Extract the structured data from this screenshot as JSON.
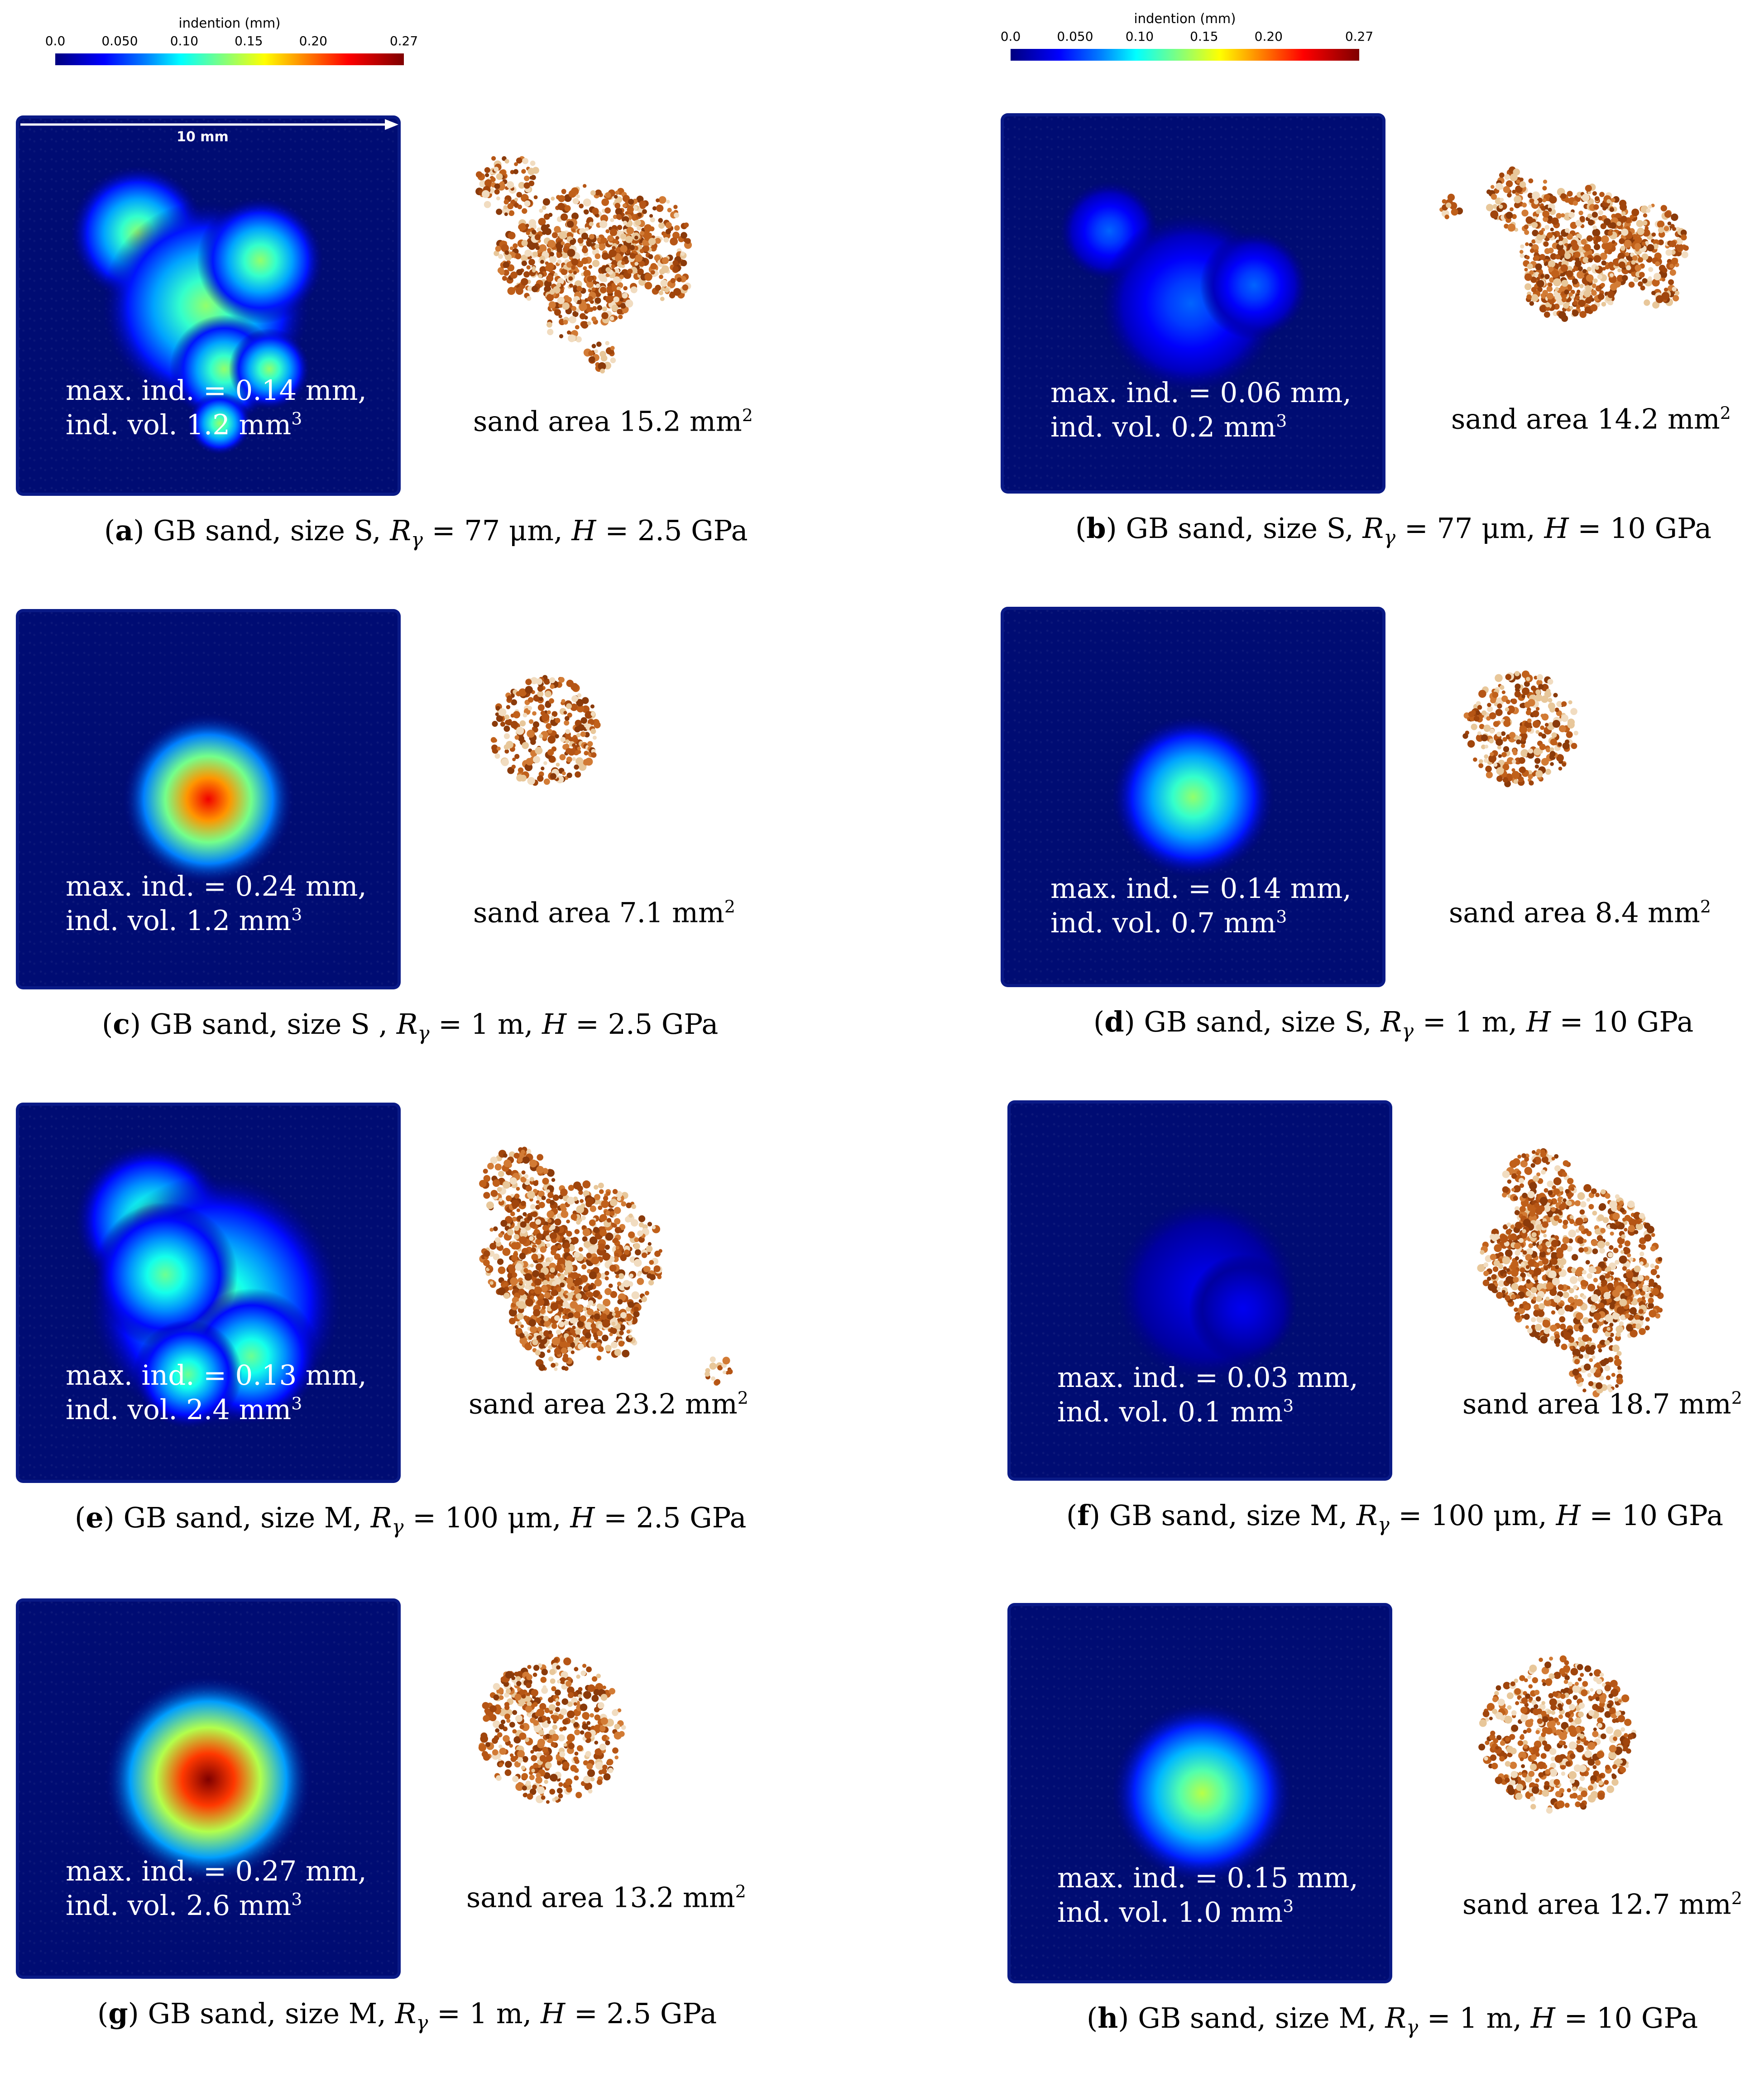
{
  "colorbars": [
    {
      "title": "indention (mm)",
      "ticks": [
        "0.0",
        "0.050",
        "0.10",
        "0.15",
        "0.20",
        "0.27"
      ],
      "tick_values": [
        0.0,
        0.05,
        0.1,
        0.15,
        0.2,
        0.27
      ]
    },
    {
      "title": "indention (mm)",
      "ticks": [
        "0.0",
        "0.050",
        "0.10",
        "0.15",
        "0.20",
        "0.27"
      ],
      "tick_values": [
        0.0,
        0.05,
        0.1,
        0.15,
        0.2,
        0.27
      ]
    }
  ],
  "colormap": [
    "#00007f",
    "#0000ff",
    "#0080ff",
    "#00ffff",
    "#7fff7f",
    "#ffff00",
    "#ff8000",
    "#ff0000",
    "#7f0000"
  ],
  "scale_bar": "10 mm",
  "panels": [
    {
      "letter": "a",
      "line1": "max. ind. = 0.14 mm,",
      "line2": "ind. vol. 1.2 mm",
      "sup": "3",
      "sand": "sand area 15.2 mm",
      "sand_sup": "2",
      "cap_pre": " GB sand, size S, ",
      "cap_r": "R",
      "cap_sub": "γ",
      "cap_mid": " = 77 μm, ",
      "cap_h": "H",
      "cap_end": " = 2.5 GPa",
      "peak": 0.14
    },
    {
      "letter": "b",
      "line1": "max. ind. = 0.06 mm,",
      "line2": "ind. vol. 0.2 mm",
      "sup": "3",
      "sand": "sand area 14.2 mm",
      "sand_sup": "2",
      "cap_pre": " GB sand, size S, ",
      "cap_r": "R",
      "cap_sub": "γ",
      "cap_mid": " = 77 μm, ",
      "cap_h": "H",
      "cap_end": " = 10 GPa",
      "peak": 0.06
    },
    {
      "letter": "c",
      "line1": "max. ind. = 0.24 mm,",
      "line2": "ind. vol. 1.2 mm",
      "sup": "3",
      "sand": "sand area 7.1 mm",
      "sand_sup": "2",
      "cap_pre": " GB sand, size S , ",
      "cap_r": "R",
      "cap_sub": "γ",
      "cap_mid": " = 1 m, ",
      "cap_h": "H",
      "cap_end": " = 2.5 GPa",
      "peak": 0.24
    },
    {
      "letter": "d",
      "line1": "max. ind. = 0.14 mm,",
      "line2": "ind. vol. 0.7 mm",
      "sup": "3",
      "sand": "sand area 8.4 mm",
      "sand_sup": "2",
      "cap_pre": " GB sand, size S, ",
      "cap_r": "R",
      "cap_sub": "γ",
      "cap_mid": " = 1 m, ",
      "cap_h": "H",
      "cap_end": " = 10 GPa",
      "peak": 0.14
    },
    {
      "letter": "e",
      "line1": "max. ind. = 0.13 mm,",
      "line2": "ind. vol. 2.4 mm",
      "sup": "3",
      "sand": "sand area 23.2 mm",
      "sand_sup": "2",
      "cap_pre": " GB sand, size M, ",
      "cap_r": "R",
      "cap_sub": "γ",
      "cap_mid": " = 100 μm, ",
      "cap_h": "H",
      "cap_end": " = 2.5 GPa",
      "peak": 0.13
    },
    {
      "letter": "f",
      "line1": "max. ind. = 0.03 mm,",
      "line2": "ind. vol. 0.1 mm",
      "sup": "3",
      "sand": "sand area 18.7 mm",
      "sand_sup": "2",
      "cap_pre": " GB sand, size M, ",
      "cap_r": "R",
      "cap_sub": "γ",
      "cap_mid": " = 100 μm, ",
      "cap_h": "H",
      "cap_end": " = 10 GPa",
      "peak": 0.03
    },
    {
      "letter": "g",
      "line1": "max. ind. = 0.27 mm,",
      "line2": "ind. vol. 2.6 mm",
      "sup": "3",
      "sand": "sand area 13.2 mm",
      "sand_sup": "2",
      "cap_pre": " GB sand, size M, ",
      "cap_r": "R",
      "cap_sub": "γ",
      "cap_mid": " = 1 m, ",
      "cap_h": "H",
      "cap_end": " = 2.5 GPa",
      "peak": 0.27
    },
    {
      "letter": "h",
      "line1": "max. ind. = 0.15 mm,",
      "line2": "ind. vol. 1.0 mm",
      "sup": "3",
      "sand": "sand area 12.7 mm",
      "sand_sup": "2",
      "cap_pre": " GB sand, size M, ",
      "cap_r": "R",
      "cap_sub": "γ",
      "cap_mid": " = 1 m, ",
      "cap_h": "H",
      "cap_end": " = 10 GPa",
      "peak": 0.15
    }
  ]
}
